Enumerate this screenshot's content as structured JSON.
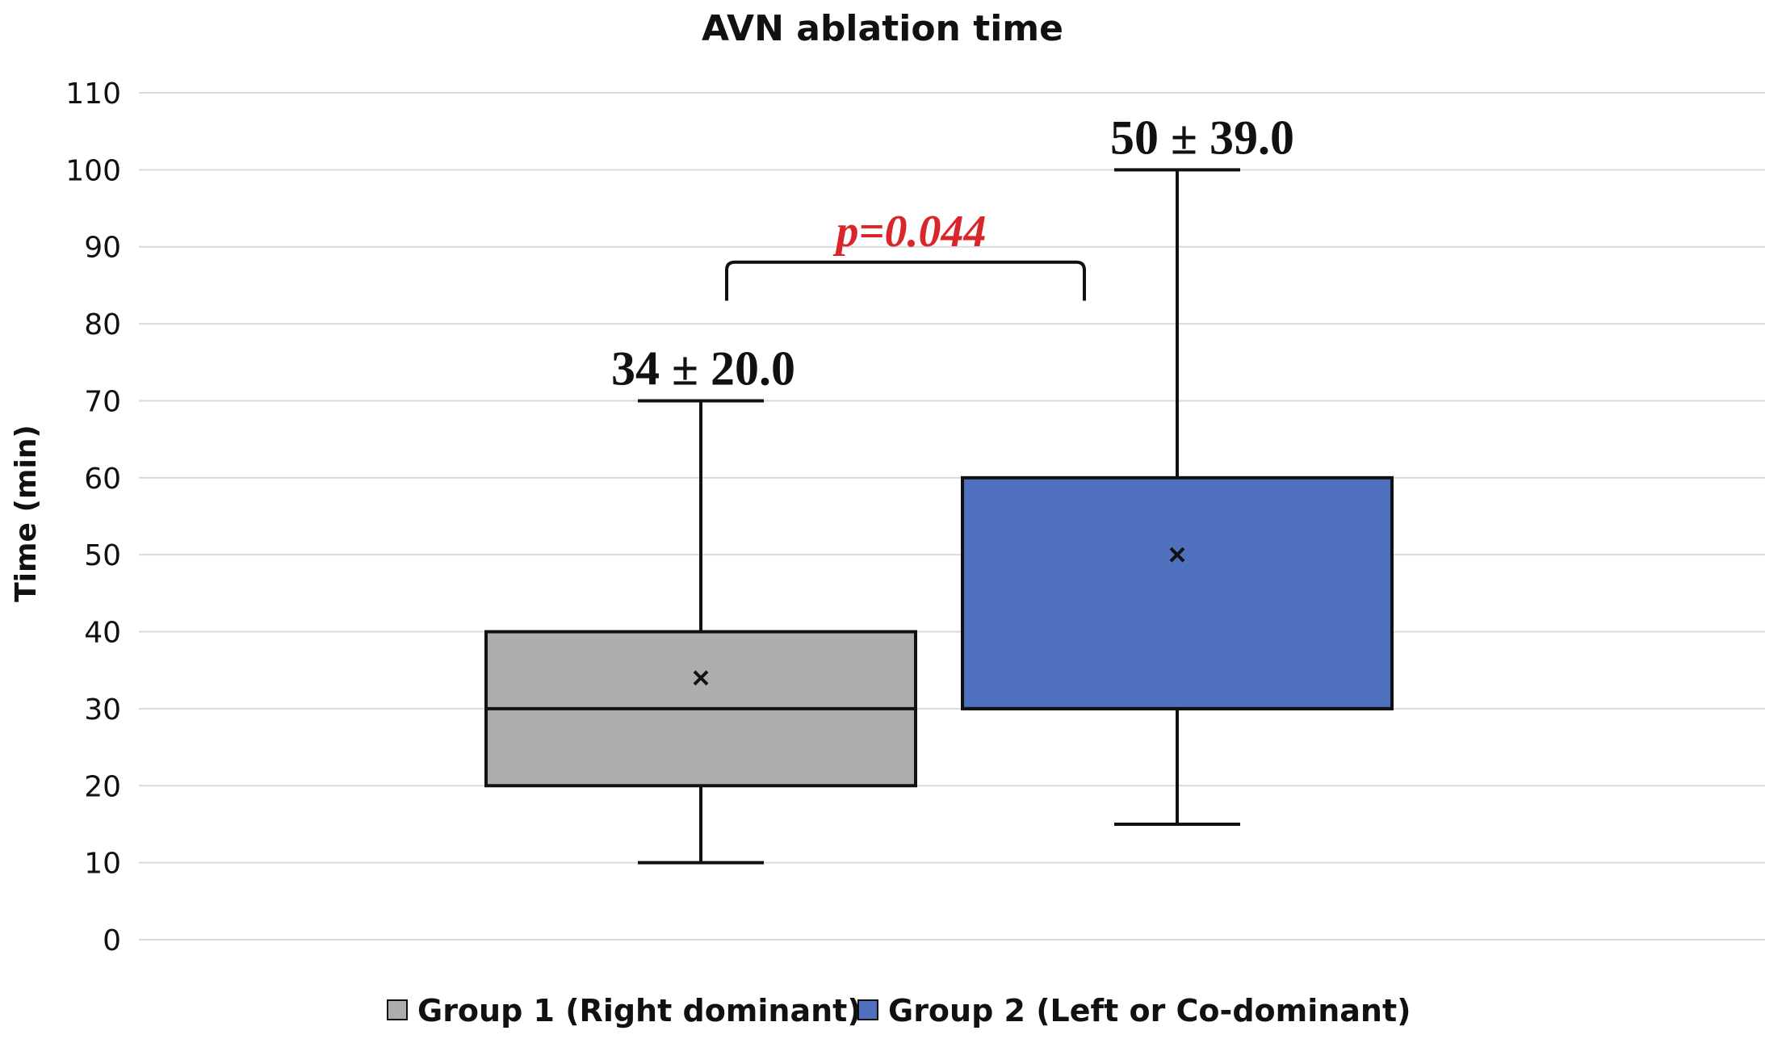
{
  "chart_data": {
    "type": "box",
    "title": "AVN ablation time",
    "ylabel": "Time (min)",
    "xlabel": "",
    "ylim": [
      0,
      110
    ],
    "yticks": [
      0,
      10,
      20,
      30,
      40,
      50,
      60,
      70,
      80,
      90,
      100,
      110
    ],
    "grid": true,
    "legend_position": "bottom",
    "series": [
      {
        "name": "Group 1 (Right dominant)",
        "color": "#adadad",
        "min": 10,
        "q1": 20,
        "median": 30,
        "q3": 40,
        "max": 70,
        "mean": 34,
        "label": "34 ± 20.0"
      },
      {
        "name": "Group 2 (Left or Co-dominant)",
        "color": "#4f70bd",
        "min": 15,
        "q1": 30,
        "median": 30,
        "q3": 60,
        "max": 100,
        "mean": 50,
        "label": "50 ± 39.0"
      }
    ],
    "annotation": {
      "text": "p=0.044",
      "color": "#d9262b",
      "bracket_level": 88,
      "bracket_bottom": 83
    }
  }
}
